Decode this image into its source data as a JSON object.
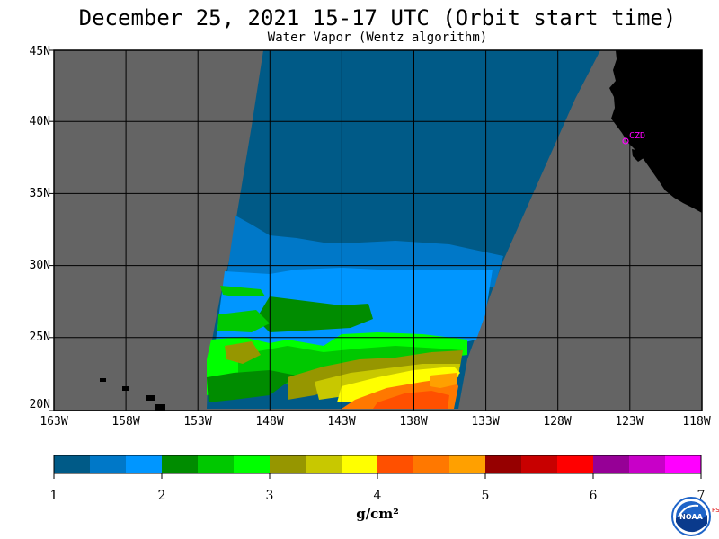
{
  "title": "December 25, 2021  15-17 UTC  (Orbit start time)",
  "subtitle": "Water Vapor (Wentz algorithm)",
  "lat_labels": [
    "45N",
    "40N",
    "35N",
    "30N",
    "25N",
    "20N"
  ],
  "lon_labels": [
    "163W",
    "158W",
    "153W",
    "148W",
    "143W",
    "138W",
    "133W",
    "128W",
    "123W",
    "118W"
  ],
  "city_label": "CZD",
  "colorbar": {
    "colors": [
      "#005a87",
      "#0078c8",
      "#0096ff",
      "#008c00",
      "#00c800",
      "#00ff00",
      "#969600",
      "#c8c800",
      "#ffff00",
      "#ff5000",
      "#ff7800",
      "#ffa000",
      "#960000",
      "#c80000",
      "#ff0000",
      "#960096",
      "#c800c8",
      "#ff00ff"
    ],
    "tick_labels": [
      "1",
      "2",
      "3",
      "4",
      "5",
      "6",
      "7"
    ],
    "unit": "g/cm²"
  },
  "logo": {
    "name": "NOAA",
    "side_text": "PSL"
  },
  "colors": {
    "no_data": "#646464",
    "land": "#000000",
    "grid": "#000000",
    "city": "#ff00ff"
  }
}
